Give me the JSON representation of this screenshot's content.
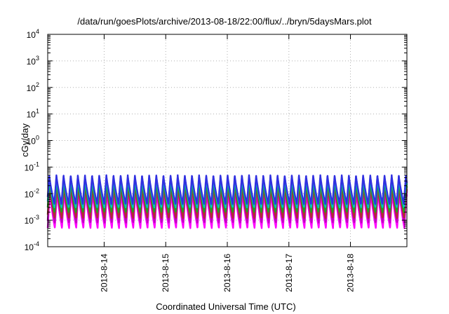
{
  "chart_data": {
    "type": "line",
    "title": "/data/run/goesPlots/archive/2013-08-18/22:00/flux/../bryn/5daysMars.plot",
    "xlabel": "Coordinated Universal Time (UTC)",
    "ylabel": "cGy/day",
    "yscale": "log",
    "ylim": [
      0.0001,
      10000
    ],
    "y_ticks": [
      {
        "value": 0.0001,
        "mantissa": "10",
        "exp": "-4"
      },
      {
        "value": 0.001,
        "mantissa": "10",
        "exp": "-3"
      },
      {
        "value": 0.01,
        "mantissa": "10",
        "exp": "-2"
      },
      {
        "value": 0.1,
        "mantissa": "10",
        "exp": "-1"
      },
      {
        "value": 1,
        "mantissa": "10",
        "exp": "0"
      },
      {
        "value": 10,
        "mantissa": "10",
        "exp": "1"
      },
      {
        "value": 100,
        "mantissa": "10",
        "exp": "2"
      },
      {
        "value": 1000,
        "mantissa": "10",
        "exp": "3"
      },
      {
        "value": 10000,
        "mantissa": "10",
        "exp": "4"
      }
    ],
    "xlim": [
      "2013-08-13 02:00",
      "2013-08-18 22:00"
    ],
    "x_ticks": [
      "2013-8-14",
      "2013-8-15",
      "2013-8-16",
      "2013-8-17",
      "2013-8-18"
    ],
    "grid": true,
    "legend": "none",
    "period_hours": 2.78,
    "series": [
      {
        "color": "#ff00ff",
        "peak": 0.012,
        "trough": 0.0005
      },
      {
        "color": "#c000c0",
        "peak": 0.018,
        "trough": 0.0008
      },
      {
        "color": "#b03030",
        "peak": 0.022,
        "trough": 0.0012
      },
      {
        "color": "#20a020",
        "peak": 0.03,
        "trough": 0.002
      },
      {
        "color": "#00c0c0",
        "peak": 0.04,
        "trough": 0.003
      },
      {
        "color": "#3030e0",
        "peak": 0.05,
        "trough": 0.004
      }
    ]
  }
}
